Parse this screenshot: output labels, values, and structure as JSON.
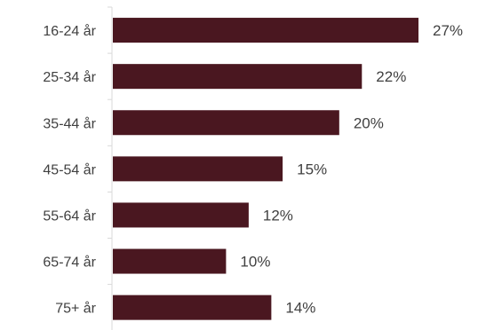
{
  "chart_data": {
    "type": "bar",
    "orientation": "horizontal",
    "categories": [
      "16-24 år",
      "25-34 år",
      "35-44 år",
      "45-54 år",
      "55-64 år",
      "65-74 år",
      "75+ år"
    ],
    "values": [
      27,
      22,
      20,
      15,
      12,
      10,
      14
    ],
    "value_labels": [
      "27%",
      "22%",
      "20%",
      "15%",
      "12%",
      "10%",
      "14%"
    ],
    "xlim": [
      0,
      27
    ],
    "grid": false,
    "legend": "none",
    "bar_color": "#4a1720",
    "axis_color": "#d9d9d9",
    "text_color": "#404040"
  }
}
